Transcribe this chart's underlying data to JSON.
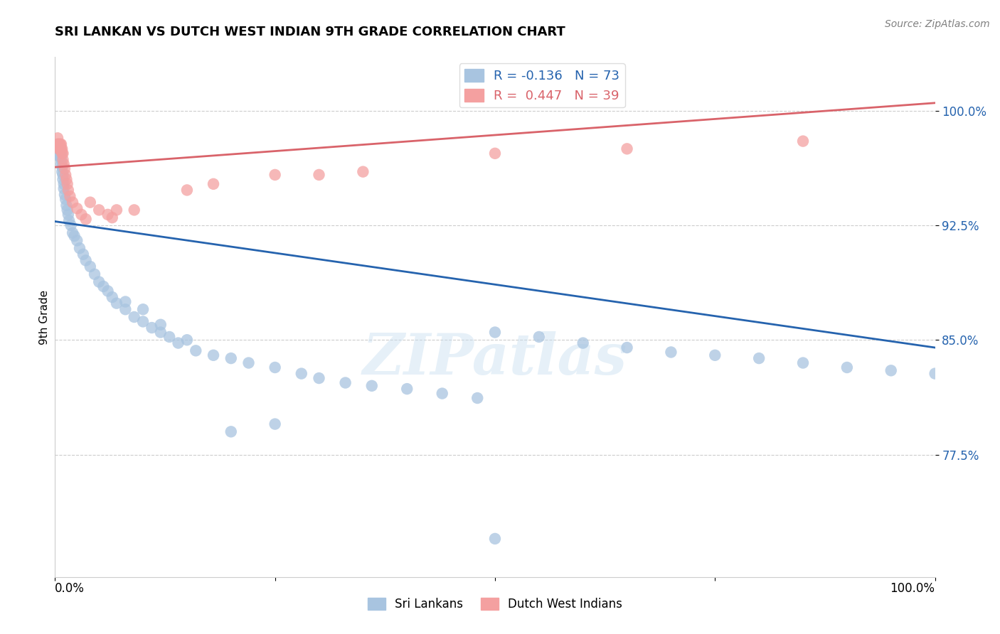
{
  "title": "SRI LANKAN VS DUTCH WEST INDIAN 9TH GRADE CORRELATION CHART",
  "source": "Source: ZipAtlas.com",
  "ylabel": "9th Grade",
  "ytick_labels": [
    "77.5%",
    "85.0%",
    "92.5%",
    "100.0%"
  ],
  "ytick_values": [
    0.775,
    0.85,
    0.925,
    1.0
  ],
  "xlim": [
    0.0,
    1.0
  ],
  "ylim": [
    0.695,
    1.035
  ],
  "sri_lankan_color": "#a8c4e0",
  "dutch_wi_color": "#f4a0a0",
  "blue_line_color": "#2563ae",
  "pink_line_color": "#d9636a",
  "watermark": "ZIPatlas",
  "sri_lankan_x": [
    0.003,
    0.004,
    0.004,
    0.005,
    0.005,
    0.006,
    0.006,
    0.007,
    0.007,
    0.007,
    0.008,
    0.008,
    0.009,
    0.009,
    0.01,
    0.01,
    0.011,
    0.012,
    0.013,
    0.014,
    0.015,
    0.016,
    0.018,
    0.02,
    0.022,
    0.025,
    0.028,
    0.032,
    0.035,
    0.04,
    0.045,
    0.05,
    0.055,
    0.06,
    0.065,
    0.07,
    0.08,
    0.09,
    0.1,
    0.11,
    0.12,
    0.13,
    0.14,
    0.16,
    0.18,
    0.2,
    0.22,
    0.25,
    0.28,
    0.3,
    0.33,
    0.36,
    0.4,
    0.44,
    0.48,
    0.5,
    0.55,
    0.6,
    0.65,
    0.7,
    0.75,
    0.8,
    0.85,
    0.9,
    0.95,
    1.0,
    0.5,
    0.2,
    0.25,
    0.1,
    0.08,
    0.12,
    0.15
  ],
  "sri_lankan_y": [
    0.978,
    0.975,
    0.972,
    0.97,
    0.974,
    0.975,
    0.97,
    0.972,
    0.968,
    0.965,
    0.963,
    0.96,
    0.958,
    0.955,
    0.952,
    0.949,
    0.945,
    0.942,
    0.938,
    0.935,
    0.932,
    0.928,
    0.925,
    0.92,
    0.918,
    0.915,
    0.91,
    0.906,
    0.902,
    0.898,
    0.893,
    0.888,
    0.885,
    0.882,
    0.878,
    0.874,
    0.87,
    0.865,
    0.862,
    0.858,
    0.855,
    0.852,
    0.848,
    0.843,
    0.84,
    0.838,
    0.835,
    0.832,
    0.828,
    0.825,
    0.822,
    0.82,
    0.818,
    0.815,
    0.812,
    0.855,
    0.852,
    0.848,
    0.845,
    0.842,
    0.84,
    0.838,
    0.835,
    0.832,
    0.83,
    0.828,
    0.72,
    0.79,
    0.795,
    0.87,
    0.875,
    0.86,
    0.85
  ],
  "dutch_wi_x": [
    0.003,
    0.003,
    0.004,
    0.004,
    0.005,
    0.005,
    0.006,
    0.006,
    0.007,
    0.007,
    0.008,
    0.008,
    0.009,
    0.009,
    0.01,
    0.011,
    0.012,
    0.013,
    0.014,
    0.015,
    0.017,
    0.02,
    0.025,
    0.03,
    0.035,
    0.04,
    0.05,
    0.06,
    0.065,
    0.07,
    0.09,
    0.15,
    0.18,
    0.25,
    0.3,
    0.35,
    0.5,
    0.65,
    0.85
  ],
  "dutch_wi_y": [
    0.978,
    0.982,
    0.978,
    0.975,
    0.978,
    0.975,
    0.978,
    0.975,
    0.978,
    0.975,
    0.972,
    0.975,
    0.972,
    0.968,
    0.965,
    0.962,
    0.958,
    0.955,
    0.952,
    0.948,
    0.944,
    0.94,
    0.936,
    0.932,
    0.929,
    0.94,
    0.935,
    0.932,
    0.93,
    0.935,
    0.935,
    0.948,
    0.952,
    0.958,
    0.958,
    0.96,
    0.972,
    0.975,
    0.98
  ],
  "blue_trendline_x": [
    0.0,
    1.0
  ],
  "blue_trendline_y": [
    0.9275,
    0.845
  ],
  "pink_trendline_x": [
    0.0,
    1.0
  ],
  "pink_trendline_y": [
    0.963,
    1.005
  ],
  "grid_yticks": [
    0.775,
    0.85,
    0.925,
    1.0
  ],
  "grid_color": "#cccccc",
  "background_color": "#ffffff"
}
